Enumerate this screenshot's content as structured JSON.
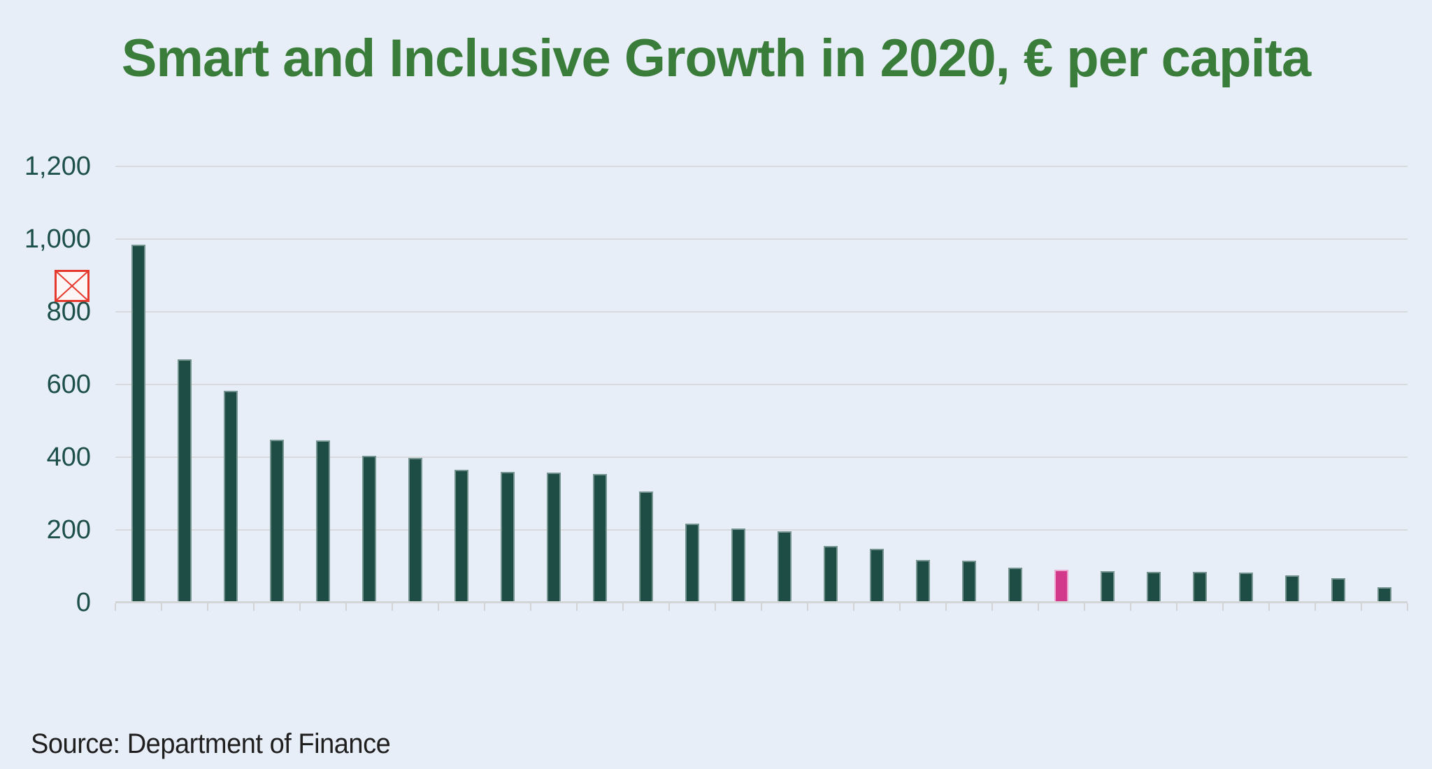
{
  "source_note": "Source: Department of Finance",
  "icons": {
    "broken_image": "broken-image-icon"
  },
  "colors": {
    "background": "#e8eef7",
    "title": "#3a7c3a",
    "bar": "#1e4d45",
    "bar_highlight": "#d2398a",
    "bar_highlight_border": "#eda7d0",
    "gridline": "#d9dadb",
    "axis": "#d2d4d6",
    "ytick_label": "#1d5049",
    "source_text": "#1f1f1f",
    "broken_image_red": "#e63a2e"
  },
  "chart_data": {
    "type": "bar",
    "title": "Smart and Inclusive Growth in 2020, € per capita",
    "xlabel": "",
    "ylabel": "",
    "ylim": [
      0,
      1200
    ],
    "ytick_step": 200,
    "ytick_labels": [
      "1,200",
      "1,000",
      "800",
      "600",
      "400",
      "200",
      "0"
    ],
    "x_tick_labels": "none visible",
    "grid": "horizontal",
    "legend": "none",
    "n_bars": 28,
    "values": [
      980,
      665,
      578,
      445,
      442,
      400,
      395,
      362,
      355,
      353,
      350,
      302,
      213,
      200,
      193,
      152,
      145,
      113,
      112,
      93,
      86,
      83,
      81,
      80,
      78,
      72,
      64,
      38
    ],
    "highlight_index": 20,
    "highlight_value": 86
  }
}
